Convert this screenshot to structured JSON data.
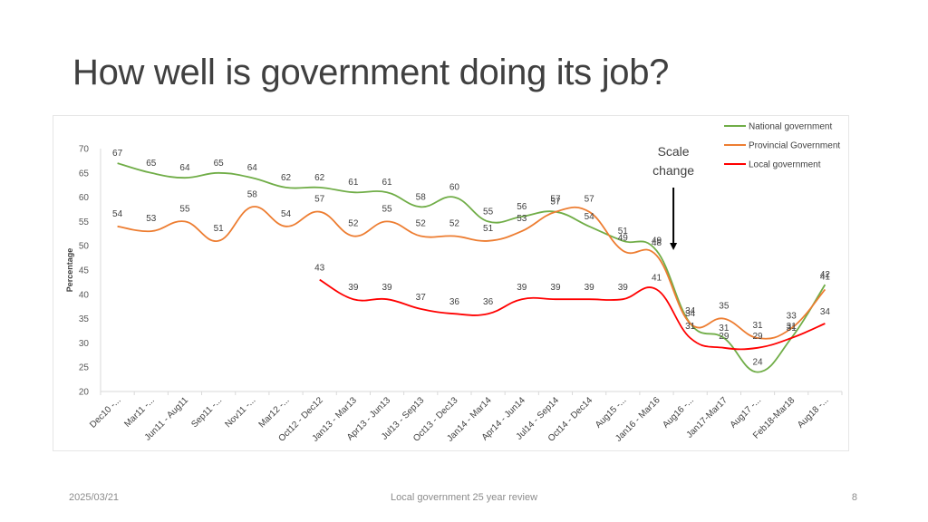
{
  "slide": {
    "title": "How well is government doing its job?",
    "footer_date": "2025/03/21",
    "footer_center": "Local government 25 year review",
    "page_number": "8"
  },
  "chart_data": {
    "type": "line",
    "title": "",
    "xlabel": "",
    "ylabel": "Percentage",
    "ylim": [
      20,
      70
    ],
    "yticks": [
      20,
      25,
      30,
      35,
      40,
      45,
      50,
      55,
      60,
      65,
      70
    ],
    "grid": false,
    "legend_position": "top-right",
    "categories": [
      "Dec10 -...",
      "Mar11 -...",
      "Jun11 - Aug11",
      "Sep11 -...",
      "Nov11 -...",
      "Mar12 -...",
      "Oct12 - Dec12",
      "Jan13 - Mar13",
      "Apr13 - Jun13",
      "Jul13 - Sep13",
      "Oct13 - Dec13",
      "Jan14 - Mar14",
      "Apr14 - Jun14",
      "Jul14 - Sep14",
      "Oct14 - Dec14",
      "Aug15 -...",
      "Jan16 - Mar16",
      "Aug16 -...",
      "Jan17-Mar17",
      "Aug17 -...",
      "Feb18-Mar18",
      "Aug18 -..."
    ],
    "series": [
      {
        "name": "National government",
        "color": "#70ad47",
        "values": [
          67,
          65,
          64,
          65,
          64,
          62,
          62,
          61,
          61,
          58,
          60,
          55,
          56,
          57,
          54,
          51,
          49,
          34,
          31,
          24,
          31,
          42
        ]
      },
      {
        "name": "Provincial Government",
        "color": "#ed7d31",
        "values": [
          54,
          53,
          55,
          51,
          58,
          54,
          57,
          52,
          55,
          52,
          52,
          51,
          53,
          57,
          57,
          49,
          48,
          34,
          35,
          31,
          33,
          41
        ]
      },
      {
        "name": "Local government",
        "color": "#ff0000",
        "values": [
          null,
          null,
          null,
          null,
          null,
          null,
          43,
          39,
          39,
          37,
          36,
          36,
          39,
          39,
          39,
          39,
          41,
          31,
          29,
          29,
          31,
          34
        ]
      }
    ],
    "annotation": {
      "text_line1": "Scale",
      "text_line2": "change",
      "category_index": 17
    }
  }
}
